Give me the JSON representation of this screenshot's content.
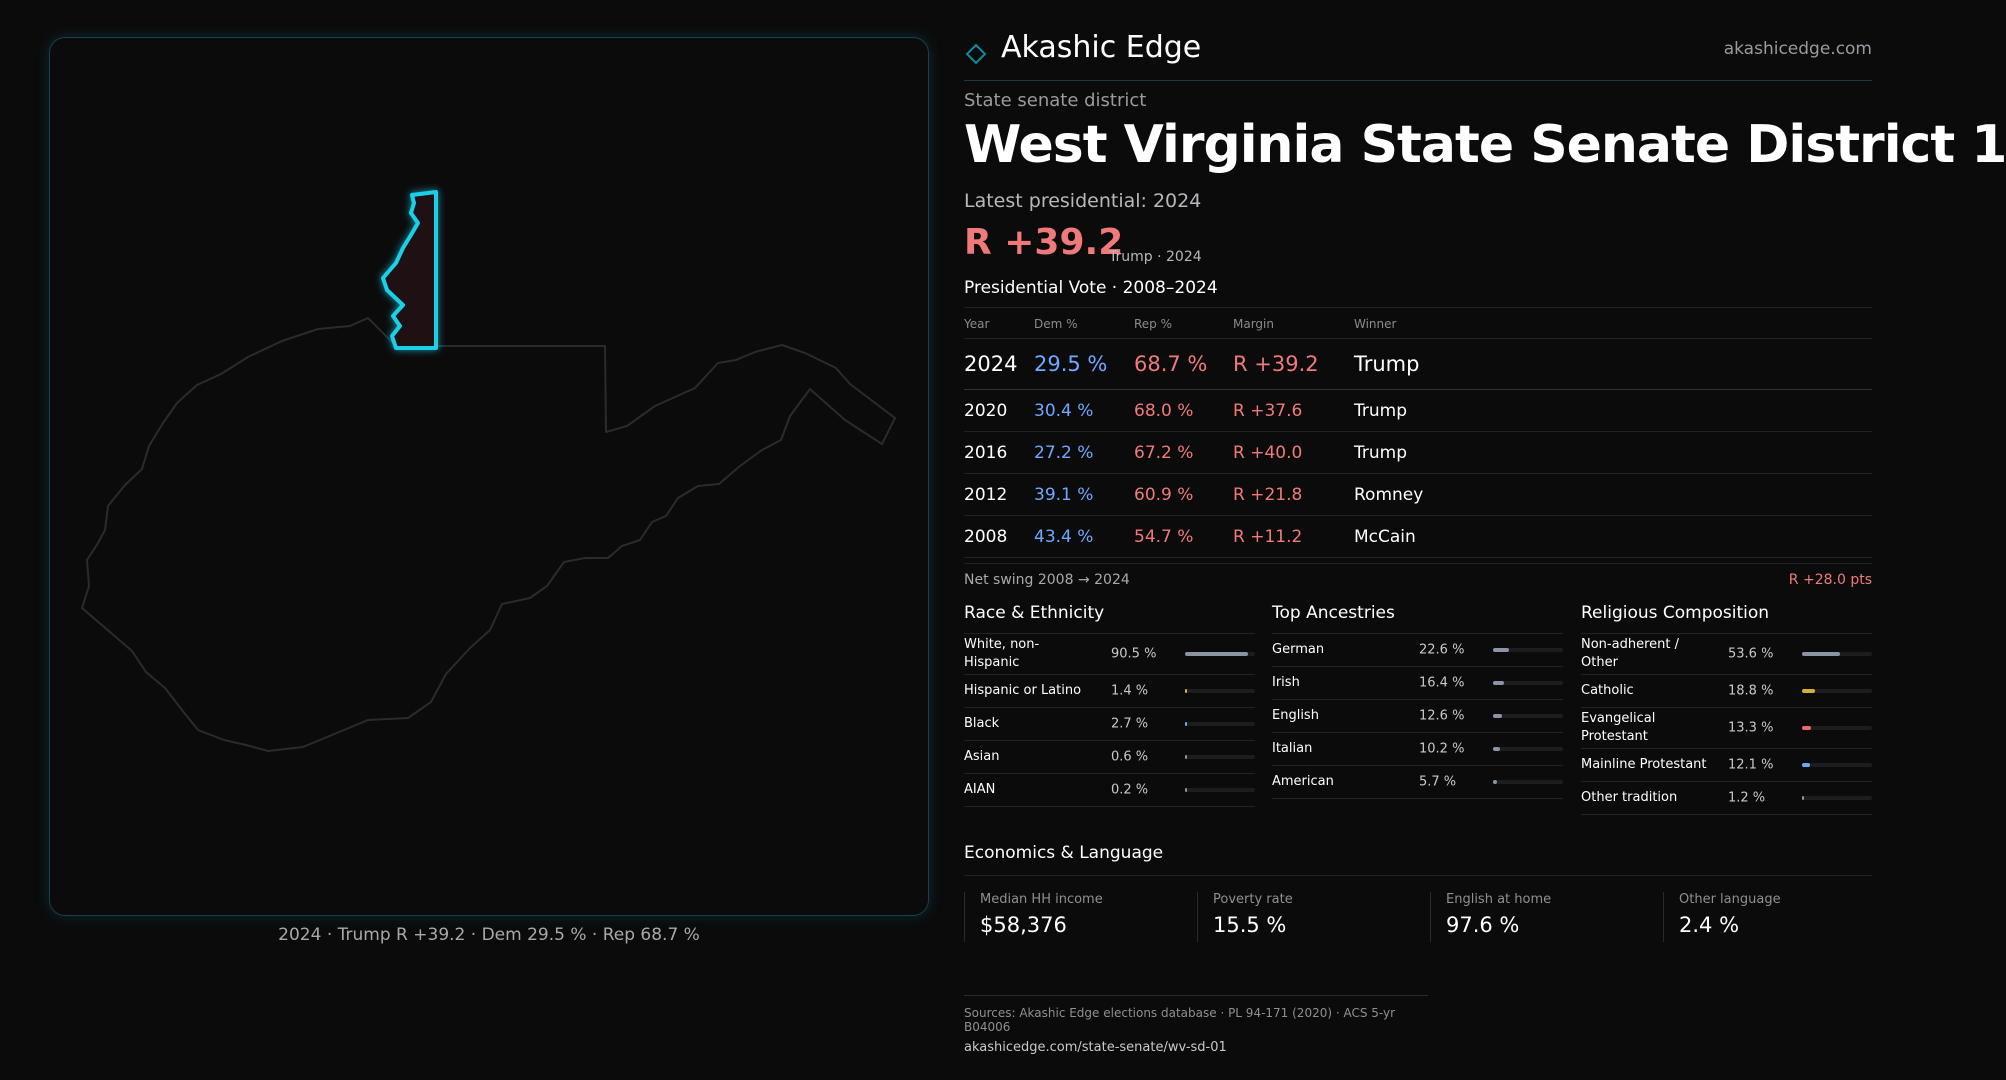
{
  "brand": {
    "name": "Akashic Edge",
    "url": "akashicedge.com",
    "accent": "#0f8aa0"
  },
  "kicker": "State senate district",
  "title": "West Virginia State Senate District 1",
  "latest": "Latest presidential: 2024",
  "headline": {
    "margin": "R +39.2",
    "sub": "Trump · 2024"
  },
  "map": {
    "caption": "2024 · Trump R +39.2 · Dem 29.5 % · Rep 68.7 %",
    "highlight_color": "#19d0e8"
  },
  "vote_table": {
    "title": "Presidential Vote · 2008–2024",
    "headers": [
      "Year",
      "Dem %",
      "Rep %",
      "Margin",
      "Winner"
    ],
    "rows": [
      {
        "year": "2024",
        "dem": "29.5 %",
        "rep": "68.7 %",
        "margin": "R +39.2",
        "winner": "Trump"
      },
      {
        "year": "2020",
        "dem": "30.4 %",
        "rep": "68.0 %",
        "margin": "R +37.6",
        "winner": "Trump"
      },
      {
        "year": "2016",
        "dem": "27.2 %",
        "rep": "67.2 %",
        "margin": "R +40.0",
        "winner": "Trump"
      },
      {
        "year": "2012",
        "dem": "39.1 %",
        "rep": "60.9 %",
        "margin": "R +21.8",
        "winner": "Romney"
      },
      {
        "year": "2008",
        "dem": "43.4 %",
        "rep": "54.7 %",
        "margin": "R +11.2",
        "winner": "McCain"
      }
    ]
  },
  "swing": {
    "label": "Net swing 2008 → 2024",
    "value": "R +28.0 pts"
  },
  "race": {
    "title": "Race & Ethnicity",
    "rows": [
      {
        "label": "White, non-Hispanic",
        "pct": "90.5 %",
        "value": 90.5,
        "color": "#8a94a6"
      },
      {
        "label": "Hispanic or Latino",
        "pct": "1.4 %",
        "value": 1.4,
        "color": "#d4b03a"
      },
      {
        "label": "Black",
        "pct": "2.7 %",
        "value": 2.7,
        "color": "#6fa8ff"
      },
      {
        "label": "Asian",
        "pct": "0.6 %",
        "value": 0.6,
        "color": "#8a94a6"
      },
      {
        "label": "AIAN",
        "pct": "0.2 %",
        "value": 0.2,
        "color": "#8a94a6"
      }
    ]
  },
  "ancestry": {
    "title": "Top Ancestries",
    "rows": [
      {
        "label": "German",
        "pct": "22.6 %",
        "value": 22.6,
        "color": "#8a94a6"
      },
      {
        "label": "Irish",
        "pct": "16.4 %",
        "value": 16.4,
        "color": "#8a94a6"
      },
      {
        "label": "English",
        "pct": "12.6 %",
        "value": 12.6,
        "color": "#8a94a6"
      },
      {
        "label": "Italian",
        "pct": "10.2 %",
        "value": 10.2,
        "color": "#8a94a6"
      },
      {
        "label": "American",
        "pct": "5.7 %",
        "value": 5.7,
        "color": "#8a94a6"
      }
    ]
  },
  "religion": {
    "title": "Religious Composition",
    "rows": [
      {
        "label": "Non-adherent / Other",
        "pct": "53.6 %",
        "value": 53.6,
        "color": "#8a94a6"
      },
      {
        "label": "Catholic",
        "pct": "18.8 %",
        "value": 18.8,
        "color": "#d4b03a"
      },
      {
        "label": "Evangelical Protestant",
        "pct": "13.3 %",
        "value": 13.3,
        "color": "#e86a6a"
      },
      {
        "label": "Mainline Protestant",
        "pct": "12.1 %",
        "value": 12.1,
        "color": "#6fa8ff"
      },
      {
        "label": "Other tradition",
        "pct": "1.2 %",
        "value": 1.2,
        "color": "#8a94a6"
      }
    ]
  },
  "economics": {
    "title": "Economics & Language",
    "items": [
      {
        "label": "Median HH income",
        "value": "$58,376"
      },
      {
        "label": "Poverty rate",
        "value": "15.5 %"
      },
      {
        "label": "English at home",
        "value": "97.6 %"
      },
      {
        "label": "Other language",
        "value": "2.4 %"
      }
    ]
  },
  "sources": {
    "line1": "Sources: Akashic Edge elections database · PL 94-171 (2020) · ACS 5-yr B04006",
    "line2": "akashicedge.com/state-senate/wv-sd-01"
  }
}
